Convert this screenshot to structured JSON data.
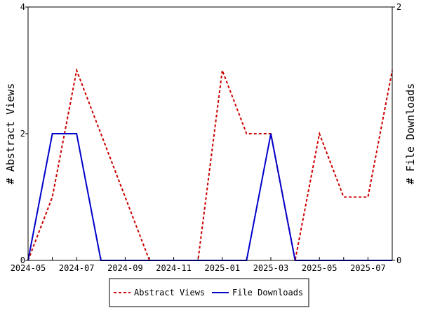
{
  "chart_data": {
    "type": "line",
    "title": "",
    "xlabel": "",
    "ylabel": "# Abstract Views",
    "y2label": "# File Downloads",
    "x": [
      "2024-05",
      "2024-06",
      "2024-07",
      "2024-08",
      "2024-09",
      "2024-10",
      "2024-11",
      "2024-12",
      "2025-01",
      "2025-02",
      "2025-03",
      "2025-04",
      "2025-05",
      "2025-06",
      "2025-07",
      "2025-08"
    ],
    "x_tick_labels": [
      "2024-05",
      "2024-07",
      "2024-09",
      "2024-11",
      "2025-01",
      "2025-03",
      "2025-05",
      "2025-07"
    ],
    "ylim": [
      0,
      4
    ],
    "y_ticks": [
      0,
      2,
      4
    ],
    "y2lim": [
      0,
      2
    ],
    "y2_ticks": [
      0,
      2
    ],
    "grid": false,
    "legend_position": "bottom",
    "series": [
      {
        "name": "Abstract Views",
        "axis": "left",
        "color": "#cc0000",
        "dashed": true,
        "values": [
          0,
          1,
          3,
          2,
          1,
          0,
          0,
          0,
          3,
          2,
          2,
          0,
          2,
          1,
          1,
          3
        ]
      },
      {
        "name": "File Downloads",
        "axis": "right",
        "color": "#0000cc",
        "dashed": false,
        "values": [
          0,
          1,
          1,
          0,
          0,
          0,
          0,
          0,
          0,
          0,
          1,
          0,
          0,
          0,
          0,
          0
        ]
      }
    ]
  }
}
